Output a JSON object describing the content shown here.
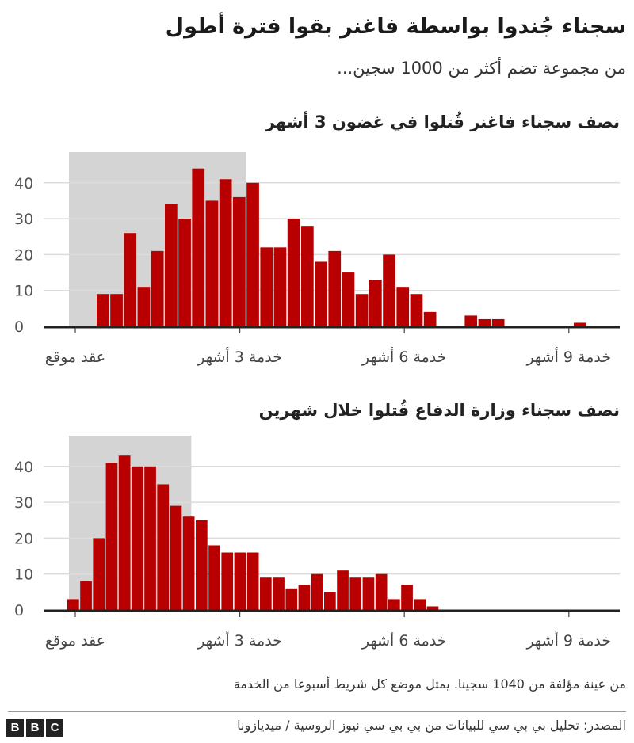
{
  "title": "سجناء جُندوا بواسطة فاغنر بقوا فترة أطول",
  "subtitle": "من مجموعة تضم أكثر من 1000 سجين...",
  "note": "من عينة مؤلفة من 1040 سجينا. يمثل موضع كل شريط أسبوعا من الخدمة",
  "source": "المصدر: تحليل بي بي سي للبيانات من بي بي سي نيوز الروسية / ميديازونا",
  "logo": [
    "B",
    "B",
    "C"
  ],
  "colors": {
    "bar": "#b80000",
    "highlight": "#d4d4d4",
    "grid": "#dcdcdc",
    "axis": "#222222"
  },
  "chart_data": [
    {
      "type": "bar",
      "title": "نصف سجناء فاغنر قُتلوا في غضون 3 أشهر",
      "bin_unit": "week",
      "values": [
        9,
        9,
        26,
        11,
        21,
        34,
        30,
        44,
        35,
        41,
        36,
        40,
        22,
        22,
        30,
        28,
        18,
        21,
        15,
        9,
        13,
        20,
        11,
        9,
        4,
        0,
        0,
        3,
        2,
        2,
        0,
        0,
        0,
        0,
        0,
        1
      ],
      "yticks": [
        0,
        10,
        20,
        30,
        40
      ],
      "ylim": [
        0,
        48
      ],
      "xticks": [
        {
          "months": 0,
          "label": "عقد موقع"
        },
        {
          "months": 3,
          "label": "خدمة 3 أشهر"
        },
        {
          "months": 6,
          "label": "خدمة 6 أشهر"
        },
        {
          "months": 9,
          "label": "خدمة 9 أشهر"
        }
      ],
      "highlight_until_months": 3,
      "grid": true
    },
    {
      "type": "bar",
      "title": "نصف سجناء وزارة الدفاع قُتلوا خلال شهرين",
      "bin_unit": "week",
      "values": [
        3,
        8,
        20,
        41,
        43,
        40,
        40,
        35,
        29,
        26,
        25,
        18,
        16,
        16,
        16,
        9,
        9,
        6,
        7,
        10,
        5,
        11,
        9,
        9,
        10,
        3,
        7,
        3,
        1
      ],
      "yticks": [
        0,
        10,
        20,
        30,
        40
      ],
      "ylim": [
        0,
        48
      ],
      "xticks": [
        {
          "months": 0,
          "label": "عقد موقع"
        },
        {
          "months": 3,
          "label": "خدمة 3 أشهر"
        },
        {
          "months": 6,
          "label": "خدمة 6 أشهر"
        },
        {
          "months": 9,
          "label": "خدمة 9 أشهر"
        }
      ],
      "highlight_until_months": 2,
      "grid": true
    }
  ]
}
